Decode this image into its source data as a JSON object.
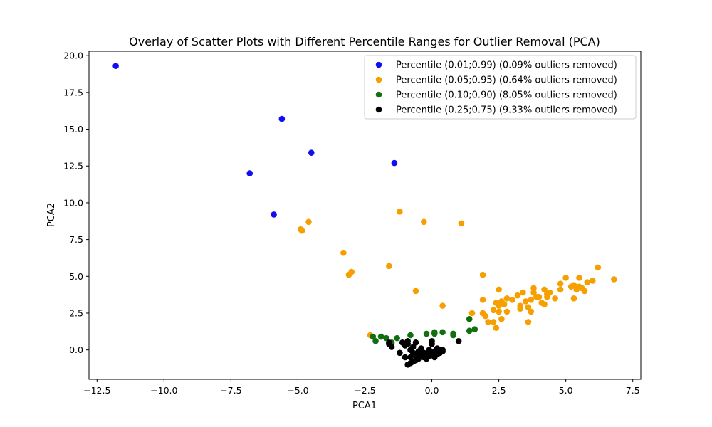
{
  "chart_data": {
    "type": "scatter",
    "title": "Overlay of Scatter Plots with Different Percentile Ranges for Outlier Removal (PCA)",
    "xlabel": "PCA1",
    "ylabel": "PCA2",
    "xlim": [
      -12.8,
      7.8
    ],
    "ylim": [
      -2.0,
      20.3
    ],
    "xticks": [
      -12.5,
      -10.0,
      -7.5,
      -5.0,
      -2.5,
      0.0,
      2.5,
      5.0,
      7.5
    ],
    "xtick_labels": [
      "−12.5",
      "−10.0",
      "−7.5",
      "−5.0",
      "−2.5",
      "0.0",
      "2.5",
      "5.0",
      "7.5"
    ],
    "yticks": [
      0.0,
      2.5,
      5.0,
      7.5,
      10.0,
      12.5,
      15.0,
      17.5,
      20.0
    ],
    "ytick_labels": [
      "0.0",
      "2.5",
      "5.0",
      "7.5",
      "10.0",
      "12.5",
      "15.0",
      "17.5",
      "20.0"
    ],
    "grid": false,
    "legend_position": "top-right",
    "series": [
      {
        "name": "Percentile (0.01;0.99) (0.09% outliers removed)",
        "color": "#1010ee",
        "points": [
          [
            -11.8,
            19.3
          ],
          [
            -5.6,
            15.7
          ],
          [
            -4.5,
            13.4
          ],
          [
            -6.8,
            12.0
          ],
          [
            -1.4,
            12.7
          ],
          [
            -5.9,
            9.2
          ]
        ]
      },
      {
        "name": "Percentile (0.05;0.95) (0.64% outliers removed)",
        "color": "#f5a000",
        "points": [
          [
            -4.6,
            8.7
          ],
          [
            -4.9,
            8.2
          ],
          [
            -4.85,
            8.1
          ],
          [
            -1.2,
            9.4
          ],
          [
            -0.3,
            8.7
          ],
          [
            1.1,
            8.6
          ],
          [
            -3.3,
            6.6
          ],
          [
            -3.0,
            5.3
          ],
          [
            -3.1,
            5.1
          ],
          [
            -1.6,
            5.7
          ],
          [
            -0.6,
            4.0
          ],
          [
            0.4,
            3.0
          ],
          [
            -2.3,
            1.0
          ],
          [
            1.5,
            2.5
          ],
          [
            1.9,
            5.1
          ],
          [
            1.9,
            3.4
          ],
          [
            1.9,
            2.5
          ],
          [
            2.1,
            1.9
          ],
          [
            2.3,
            2.7
          ],
          [
            2.3,
            1.9
          ],
          [
            2.4,
            1.5
          ],
          [
            2.5,
            2.6
          ],
          [
            2.6,
            2.1
          ],
          [
            2.0,
            2.3
          ],
          [
            2.5,
            4.1
          ],
          [
            2.4,
            3.2
          ],
          [
            2.5,
            3.0
          ],
          [
            2.6,
            3.3
          ],
          [
            2.7,
            3.1
          ],
          [
            2.8,
            3.5
          ],
          [
            2.8,
            2.6
          ],
          [
            3.0,
            3.4
          ],
          [
            3.2,
            3.7
          ],
          [
            3.3,
            3.0
          ],
          [
            3.3,
            2.8
          ],
          [
            3.4,
            3.9
          ],
          [
            3.5,
            3.3
          ],
          [
            3.6,
            2.9
          ],
          [
            3.6,
            1.9
          ],
          [
            3.7,
            3.4
          ],
          [
            3.7,
            2.6
          ],
          [
            3.8,
            4.2
          ],
          [
            3.8,
            3.9
          ],
          [
            3.9,
            3.6
          ],
          [
            4.0,
            3.6
          ],
          [
            4.1,
            3.2
          ],
          [
            4.2,
            3.1
          ],
          [
            4.2,
            4.1
          ],
          [
            4.3,
            3.8
          ],
          [
            4.3,
            3.6
          ],
          [
            4.4,
            3.9
          ],
          [
            4.6,
            3.5
          ],
          [
            4.8,
            4.5
          ],
          [
            4.8,
            4.1
          ],
          [
            5.0,
            4.9
          ],
          [
            5.2,
            4.3
          ],
          [
            5.3,
            4.4
          ],
          [
            5.3,
            3.5
          ],
          [
            5.4,
            4.1
          ],
          [
            5.5,
            4.9
          ],
          [
            5.5,
            4.3
          ],
          [
            5.6,
            4.2
          ],
          [
            5.7,
            4.0
          ],
          [
            5.8,
            4.6
          ],
          [
            6.0,
            4.7
          ],
          [
            6.2,
            5.6
          ],
          [
            6.8,
            4.8
          ]
        ]
      },
      {
        "name": "Percentile (0.10;0.90) (8.05% outliers removed)",
        "color": "#107010",
        "points": [
          [
            -2.2,
            0.9
          ],
          [
            -2.1,
            0.6
          ],
          [
            -1.9,
            0.9
          ],
          [
            -1.7,
            0.8
          ],
          [
            -1.3,
            0.8
          ],
          [
            -0.8,
            1.0
          ],
          [
            -0.2,
            1.1
          ],
          [
            0.1,
            1.1
          ],
          [
            0.1,
            1.2
          ],
          [
            0.4,
            1.2
          ],
          [
            0.8,
            1.1
          ],
          [
            0.8,
            1.0
          ],
          [
            1.4,
            2.1
          ],
          [
            1.4,
            1.3
          ],
          [
            1.6,
            1.4
          ],
          [
            -1.5,
            0.5
          ]
        ]
      },
      {
        "name": "Percentile (0.25;0.75) (9.33% outliers removed)",
        "color": "#000000",
        "points": [
          [
            -1.6,
            0.5
          ],
          [
            -1.5,
            0.2
          ],
          [
            -1.6,
            0.4
          ],
          [
            -1.2,
            -0.2
          ],
          [
            -1.1,
            0.5
          ],
          [
            -1.0,
            0.3
          ],
          [
            -0.9,
            0.4
          ],
          [
            -0.9,
            0.6
          ],
          [
            -0.8,
            0.0
          ],
          [
            -0.8,
            -0.5
          ],
          [
            -0.7,
            -0.2
          ],
          [
            -0.7,
            0.2
          ],
          [
            -0.6,
            -0.4
          ],
          [
            -0.6,
            0.5
          ],
          [
            -0.5,
            -0.1
          ],
          [
            -0.5,
            -0.6
          ],
          [
            -0.4,
            -0.3
          ],
          [
            -0.4,
            0.1
          ],
          [
            -0.3,
            -0.5
          ],
          [
            -0.3,
            -0.2
          ],
          [
            -0.2,
            -0.3
          ],
          [
            -0.2,
            -0.6
          ],
          [
            -0.1,
            -0.4
          ],
          [
            -0.1,
            0.0
          ],
          [
            0.0,
            -0.3
          ],
          [
            0.0,
            0.4
          ],
          [
            0.1,
            -0.5
          ],
          [
            0.1,
            -0.1
          ],
          [
            0.2,
            -0.3
          ],
          [
            0.2,
            0.1
          ],
          [
            0.3,
            -0.2
          ],
          [
            0.3,
            0.0
          ],
          [
            0.4,
            -0.1
          ],
          [
            0.4,
            0.0
          ],
          [
            0.0,
            0.6
          ],
          [
            -0.7,
            -0.8
          ],
          [
            -0.8,
            -0.9
          ],
          [
            -0.6,
            -0.7
          ],
          [
            -0.9,
            -1.0
          ],
          [
            1.0,
            0.6
          ],
          [
            -1.0,
            -0.5
          ]
        ]
      }
    ]
  }
}
